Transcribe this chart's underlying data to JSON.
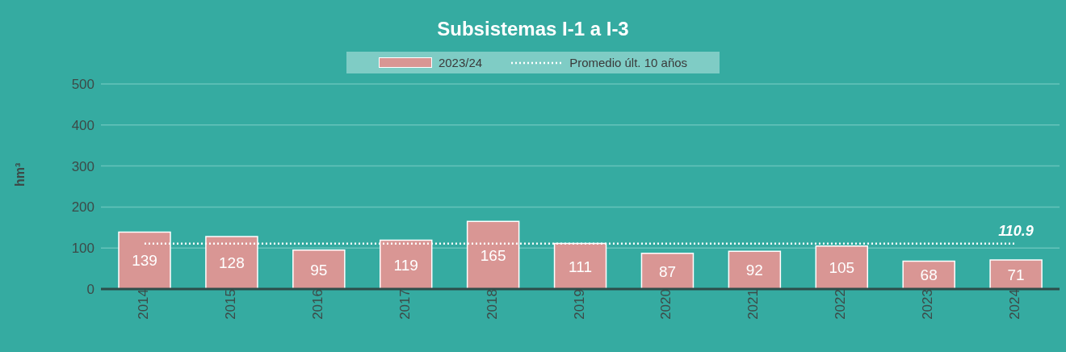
{
  "chart_data": {
    "type": "bar",
    "title": "Subsistemas I-1 a I-3",
    "ylabel": "hm³",
    "categories": [
      "2014",
      "2015",
      "2016",
      "2017",
      "2018",
      "2019",
      "2020",
      "2021",
      "2022",
      "2023",
      "2024"
    ],
    "series": [
      {
        "name": "2023/24",
        "color": "#d99694",
        "values": [
          139,
          128,
          95,
          119,
          165,
          111,
          87,
          92,
          105,
          68,
          71
        ],
        "value_labels": [
          "139",
          "128",
          "95",
          "119",
          "165",
          "111",
          "87",
          "92",
          "105",
          "68",
          "71"
        ]
      },
      {
        "name": "Promedio últ. 10 años",
        "type": "line",
        "color": "#ffffff",
        "line_style": "dotted",
        "marker": "none",
        "values": [
          110.9,
          110.9,
          110.9,
          110.9,
          110.9,
          110.9,
          110.9,
          110.9,
          110.9,
          110.9,
          110.9
        ],
        "value_labels": [
          null,
          null,
          null,
          null,
          null,
          null,
          null,
          null,
          null,
          null,
          "110.9"
        ]
      }
    ],
    "ylim": [
      0,
      500
    ],
    "yticks": [
      0,
      100,
      200,
      300,
      400,
      500
    ],
    "grid": "y",
    "legend": "top"
  }
}
